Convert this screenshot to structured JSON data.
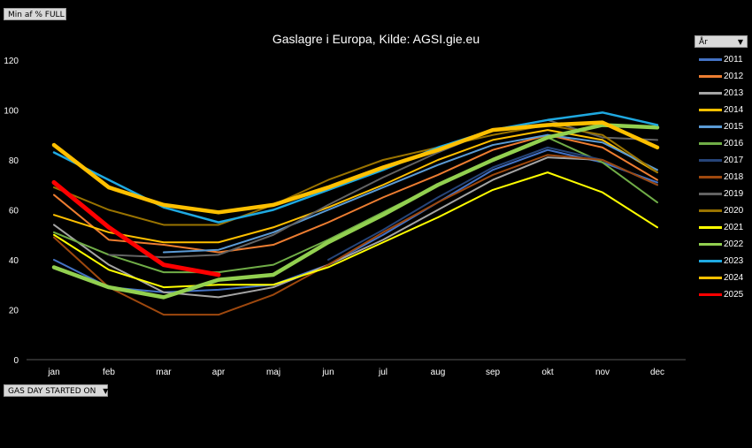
{
  "controls": {
    "page_field": "Min af % FULL",
    "axis_field": "GAS DAY STARTED ON",
    "legend_field": "År"
  },
  "chart_data": {
    "type": "line",
    "title": "Gaslagre i Europa, Kilde: AGSI.gie.eu",
    "xlabel": "",
    "ylabel": "",
    "categories": [
      "jan",
      "feb",
      "mar",
      "apr",
      "maj",
      "jun",
      "jul",
      "aug",
      "sep",
      "okt",
      "nov",
      "dec"
    ],
    "ylim": [
      0,
      120
    ],
    "yticks": [
      0,
      20,
      40,
      60,
      80,
      100,
      120
    ],
    "grid": false,
    "legend_position": "right",
    "series": [
      {
        "name": "2011",
        "color": "#4472C4",
        "width": 2,
        "values": [
          40,
          29,
          27,
          28,
          30,
          38,
          50,
          63,
          76,
          84,
          79,
          71
        ]
      },
      {
        "name": "2012",
        "color": "#ED7D31",
        "width": 2,
        "values": [
          66,
          48,
          46,
          43,
          46,
          55,
          65,
          74,
          84,
          90,
          85,
          72
        ]
      },
      {
        "name": "2013",
        "color": "#A5A5A5",
        "width": 2,
        "values": [
          54,
          38,
          27,
          25,
          29,
          38,
          48,
          60,
          72,
          81,
          80,
          70
        ]
      },
      {
        "name": "2014",
        "color": "#FFC000",
        "width": 2,
        "values": [
          58,
          51,
          47,
          47,
          53,
          61,
          70,
          80,
          88,
          92,
          88,
          75
        ]
      },
      {
        "name": "2015",
        "color": "#5B9BD5",
        "width": 2,
        "values": [
          null,
          null,
          43,
          44,
          51,
          60,
          69,
          78,
          86,
          90,
          87,
          76
        ]
      },
      {
        "name": "2016",
        "color": "#70AD47",
        "width": 2,
        "values": [
          51,
          42,
          35,
          35,
          38,
          48,
          59,
          70,
          80,
          89,
          79,
          63
        ]
      },
      {
        "name": "2017",
        "color": "#264478",
        "width": 2,
        "values": [
          null,
          null,
          null,
          null,
          null,
          40,
          52,
          65,
          77,
          85,
          80,
          70
        ]
      },
      {
        "name": "2018",
        "color": "#9E480E",
        "width": 2,
        "values": [
          49,
          29,
          18,
          18,
          26,
          38,
          51,
          63,
          74,
          82,
          80,
          70
        ]
      },
      {
        "name": "2019",
        "color": "#636363",
        "width": 2,
        "values": [
          null,
          42,
          41,
          42,
          50,
          62,
          73,
          83,
          92,
          96,
          89,
          88
        ]
      },
      {
        "name": "2020",
        "color": "#997300",
        "width": 2,
        "values": [
          69,
          60,
          54,
          54,
          62,
          72,
          80,
          85,
          90,
          94,
          90,
          75
        ]
      },
      {
        "name": "2021",
        "color": "#FFFF00",
        "width": 2,
        "values": [
          50,
          36,
          29,
          30,
          30,
          37,
          47,
          57,
          68,
          75,
          67,
          53
        ]
      },
      {
        "name": "2022",
        "color": "#92D050",
        "width": 4.5,
        "values": [
          37,
          29,
          25,
          32,
          34,
          47,
          58,
          70,
          80,
          89,
          94,
          93
        ]
      },
      {
        "name": "2023",
        "color": "#1FA9E1",
        "width": 2.5,
        "values": [
          83,
          72,
          61,
          55,
          60,
          68,
          76,
          85,
          92,
          96,
          99,
          94
        ]
      },
      {
        "name": "2024",
        "color": "#FFC000",
        "width": 4.5,
        "values": [
          86,
          69,
          62,
          59,
          62,
          69,
          77,
          84,
          92,
          94,
          95,
          85
        ]
      },
      {
        "name": "2025",
        "color": "#FF0000",
        "width": 5,
        "values": [
          71,
          53,
          38,
          34,
          null,
          null,
          null,
          null,
          null,
          null,
          null,
          null
        ]
      }
    ]
  }
}
